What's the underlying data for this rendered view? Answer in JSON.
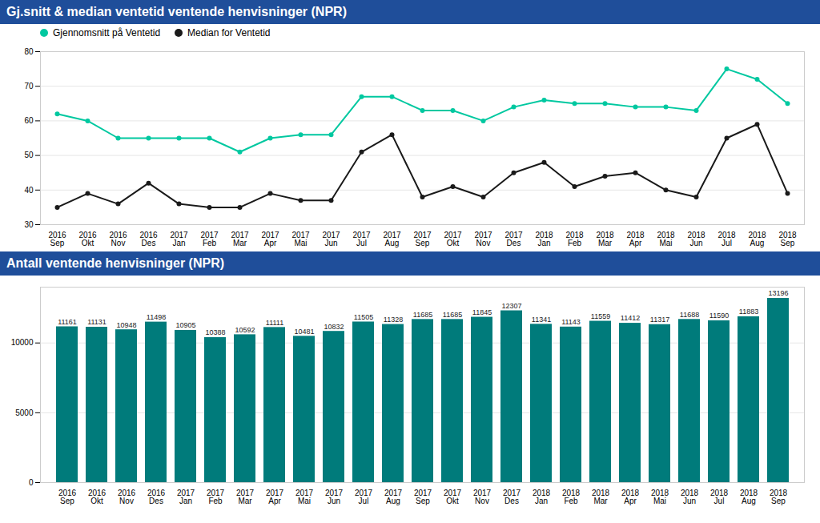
{
  "chart_data": [
    {
      "type": "line",
      "title": "Gj.snitt & median ventetid ventende henvisninger (NPR)",
      "categories": [
        "2016\nSep",
        "2016\nOkt",
        "2016\nNov",
        "2016\nDes",
        "2017\nJan",
        "2017\nFeb",
        "2017\nMar",
        "2017\nApr",
        "2017\nMai",
        "2017\nJun",
        "2017\nJul",
        "2017\nAug",
        "2017\nSep",
        "2017\nOkt",
        "2017\nNov",
        "2017\nDes",
        "2018\nJan",
        "2018\nFeb",
        "2018\nMar",
        "2018\nApr",
        "2018\nMai",
        "2018\nJun",
        "2018\nJul",
        "2018\nAug",
        "2018\nSep"
      ],
      "series": [
        {
          "name": "Gjennomsnitt på Ventetid",
          "color": "#00c8a0",
          "marker": "circle",
          "values": [
            62,
            60,
            55,
            55,
            55,
            55,
            51,
            55,
            56,
            56,
            67,
            67,
            63,
            63,
            60,
            64,
            66,
            65,
            65,
            64,
            64,
            63,
            75,
            72,
            65
          ]
        },
        {
          "name": "Median for Ventetid",
          "color": "#1a1a1a",
          "marker": "circle",
          "values": [
            35,
            39,
            36,
            42,
            36,
            35,
            35,
            39,
            37,
            37,
            51,
            56,
            38,
            41,
            38,
            45,
            48,
            41,
            44,
            45,
            40,
            38,
            55,
            59,
            39
          ]
        }
      ],
      "ylim": [
        30,
        80
      ],
      "yticks": [
        30,
        40,
        50,
        60,
        70,
        80
      ],
      "grid": true,
      "legend": "upper left"
    },
    {
      "type": "bar",
      "title": "Antall ventende henvisninger (NPR)",
      "categories": [
        "2016\nSep",
        "2016\nOkt",
        "2016\nNov",
        "2016\nDes",
        "2017\nJan",
        "2017\nFeb",
        "2017\nMar",
        "2017\nApr",
        "2017\nMai",
        "2017\nJun",
        "2017\nJul",
        "2017\nAug",
        "2017\nSep",
        "2017\nOkt",
        "2017\nNov",
        "2017\nDes",
        "2018\nJan",
        "2018\nFeb",
        "2018\nMar",
        "2018\nApr",
        "2018\nMai",
        "2018\nJun",
        "2018\nJul",
        "2018\nAug",
        "2018\nSep"
      ],
      "values": [
        11161,
        11131,
        10948,
        11498,
        10905,
        10388,
        10592,
        11111,
        10481,
        10832,
        11505,
        11328,
        11685,
        11685,
        11845,
        12307,
        11341,
        11143,
        11559,
        11412,
        11317,
        11688,
        11590,
        11883,
        13196
      ],
      "color": "#007b7b",
      "ylim": [
        0,
        14000
      ],
      "yticks": [
        0,
        5000,
        10000
      ],
      "grid": true,
      "data_labels": true
    }
  ]
}
